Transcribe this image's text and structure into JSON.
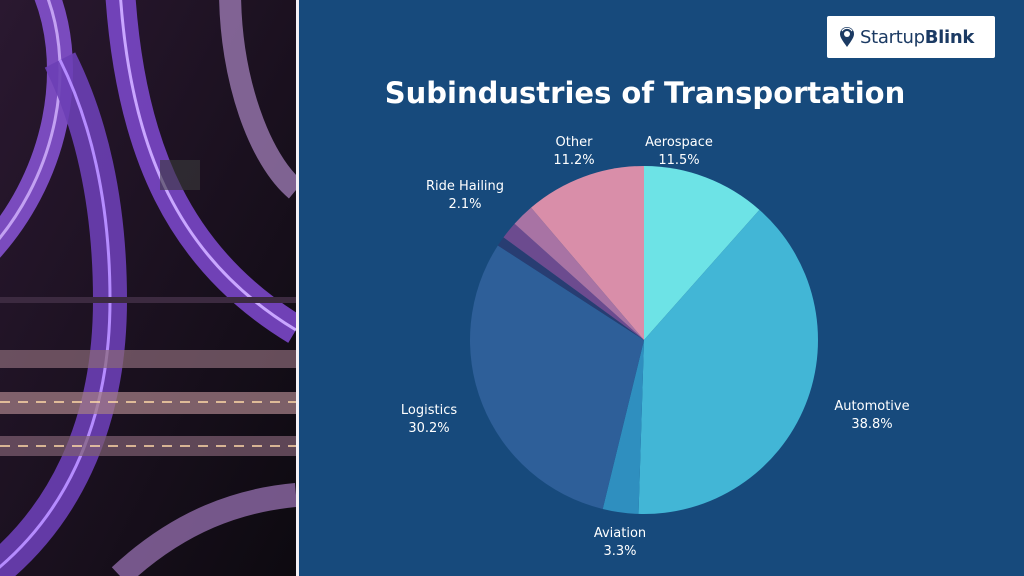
{
  "brand": {
    "name_regular": "Startup",
    "name_bold": "Blink"
  },
  "chart_data": {
    "type": "pie",
    "title": "Subindustries of Transportation",
    "slices": [
      {
        "label": "Aerospace",
        "pct_text": "11.5%",
        "value": 11.5,
        "color": "#6de3e6"
      },
      {
        "label": "Automotive",
        "pct_text": "38.8%",
        "value": 38.8,
        "color": "#42b6d6"
      },
      {
        "label": "Aviation",
        "pct_text": "3.3%",
        "value": 3.3,
        "color": "#2f8fbf"
      },
      {
        "label": "Logistics",
        "pct_text": "30.2%",
        "value": 30.2,
        "color": "#2e5f99"
      },
      {
        "label": "",
        "pct_text": "",
        "value": 0.9,
        "color": "#283d72"
      },
      {
        "label": "",
        "pct_text": "",
        "value": 1.6,
        "color": "#6c4b8f"
      },
      {
        "label": "Ride Hailing",
        "pct_text": "2.1%",
        "value": 2.1,
        "color": "#a873a4"
      },
      {
        "label": "Other",
        "pct_text": "11.2%",
        "value": 11.2,
        "color": "#d98ea9"
      }
    ]
  }
}
